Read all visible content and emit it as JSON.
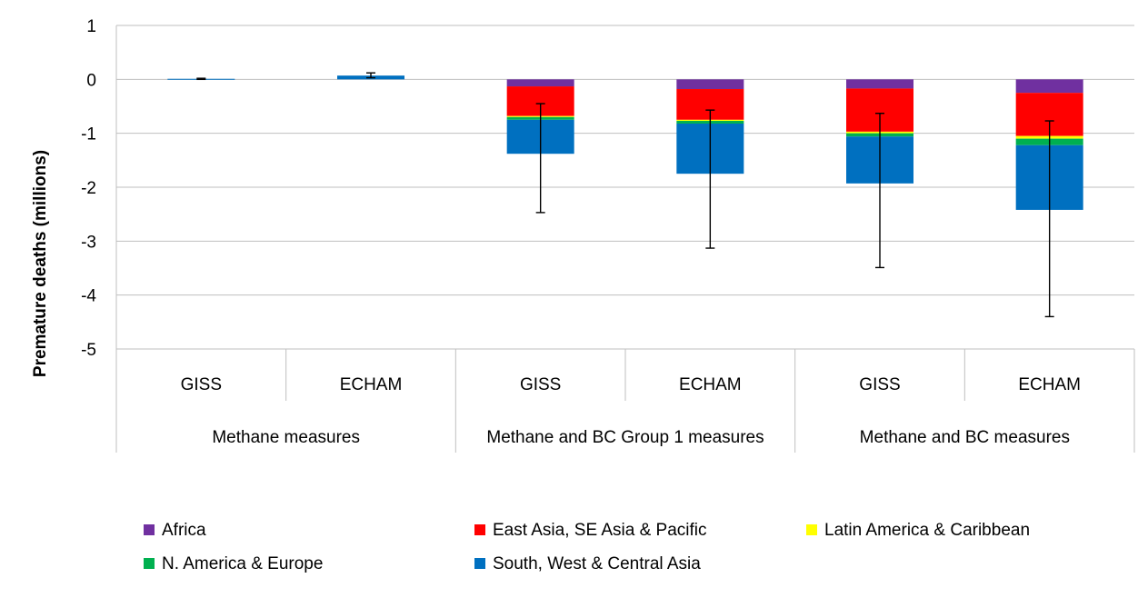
{
  "chart_data": {
    "type": "bar",
    "stacked": true,
    "ylabel": "Premature deaths (millions)",
    "xlabel": "",
    "ylim": [
      -5,
      1
    ],
    "yticks": [
      1,
      0,
      -1,
      -2,
      -3,
      -4,
      -5
    ],
    "grid": true,
    "legend_position": "bottom",
    "categories": [
      "GISS",
      "ECHAM",
      "GISS",
      "ECHAM",
      "GISS",
      "ECHAM"
    ],
    "groups": [
      {
        "label": "Methane measures",
        "span": 2
      },
      {
        "label": "Methane and BC Group 1 measures",
        "span": 2
      },
      {
        "label": "Methane and BC measures",
        "span": 2
      }
    ],
    "series": [
      {
        "name": "Africa",
        "color": "#7030A0",
        "values": [
          0,
          0,
          -0.13,
          -0.18,
          -0.17,
          -0.25
        ]
      },
      {
        "name": "East Asia, SE Asia & Pacific",
        "color": "#FF0000",
        "values": [
          0,
          0,
          -0.55,
          -0.57,
          -0.8,
          -0.8
        ]
      },
      {
        "name": "Latin America & Caribbean",
        "color": "#FFFF00",
        "values": [
          0,
          0,
          -0.02,
          -0.02,
          -0.03,
          -0.05
        ]
      },
      {
        "name": "N. America & Europe",
        "color": "#00B050",
        "values": [
          0,
          0,
          -0.05,
          -0.05,
          -0.06,
          -0.12
        ]
      },
      {
        "name": "South, West & Central Asia",
        "color": "#0070C0",
        "values": [
          0.01,
          0.07,
          -0.63,
          -0.93,
          -0.87,
          -1.2
        ]
      }
    ],
    "error_bars": [
      {
        "center": 0.01,
        "low": 0.0,
        "high": 0.02
      },
      {
        "center": 0.07,
        "low": 0.03,
        "high": 0.12
      },
      {
        "center": -1.38,
        "low": -2.47,
        "high": -0.45
      },
      {
        "center": -1.75,
        "low": -3.13,
        "high": -0.57
      },
      {
        "center": -1.93,
        "low": -3.49,
        "high": -0.63
      },
      {
        "center": -2.42,
        "low": -4.4,
        "high": -0.77
      }
    ]
  }
}
